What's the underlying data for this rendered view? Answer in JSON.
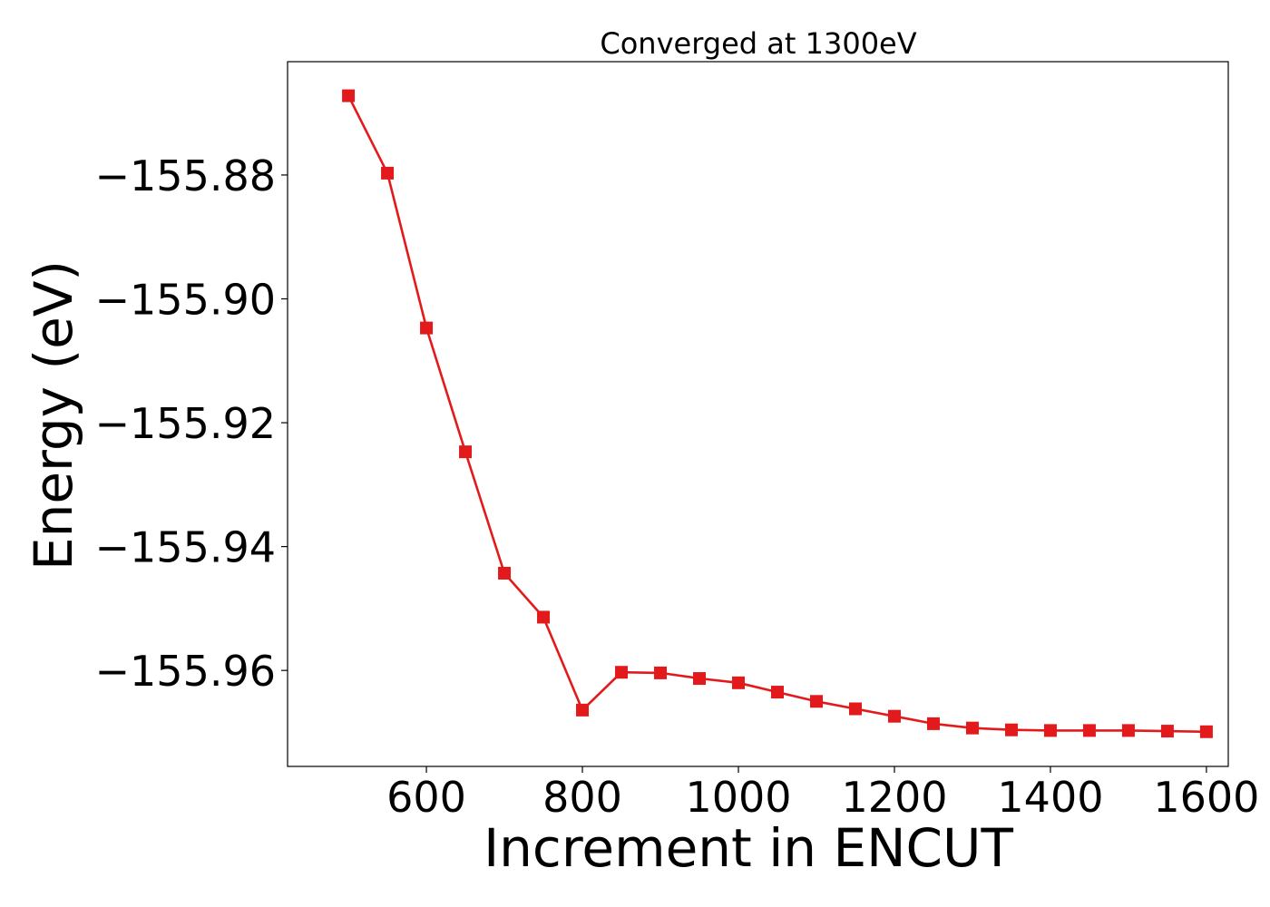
{
  "chart_data": {
    "type": "line",
    "title": "Converged at 1300eV",
    "xlabel": "Increment in ENCUT",
    "ylabel": "Energy (eV)",
    "xlim": [
      422,
      1628
    ],
    "ylim": [
      -155.9755,
      -155.8617
    ],
    "xticks": [
      600,
      800,
      1000,
      1200,
      1400,
      1600
    ],
    "xtick_labels": [
      "600",
      "800",
      "1000",
      "1200",
      "1400",
      "1600"
    ],
    "yticks": [
      -155.88,
      -155.9,
      -155.92,
      -155.94,
      -155.96
    ],
    "ytick_labels": [
      "−155.88",
      "−155.90",
      "−155.92",
      "−155.94",
      "−155.96"
    ],
    "grid": false,
    "series": [
      {
        "color": "#e31a1c",
        "marker": "square",
        "x": [
          500,
          550,
          600,
          650,
          700,
          750,
          800,
          850,
          900,
          950,
          1000,
          1050,
          1100,
          1150,
          1200,
          1250,
          1300,
          1350,
          1400,
          1450,
          1500,
          1550,
          1600
        ],
        "y": [
          -155.8672,
          -155.8797,
          -155.9047,
          -155.9247,
          -155.9443,
          -155.9514,
          -155.9664,
          -155.9603,
          -155.9604,
          -155.9613,
          -155.962,
          -155.9635,
          -155.965,
          -155.9662,
          -155.9674,
          -155.9686,
          -155.9693,
          -155.9696,
          -155.9697,
          -155.9697,
          -155.9697,
          -155.9698,
          -155.9699
        ]
      }
    ]
  }
}
